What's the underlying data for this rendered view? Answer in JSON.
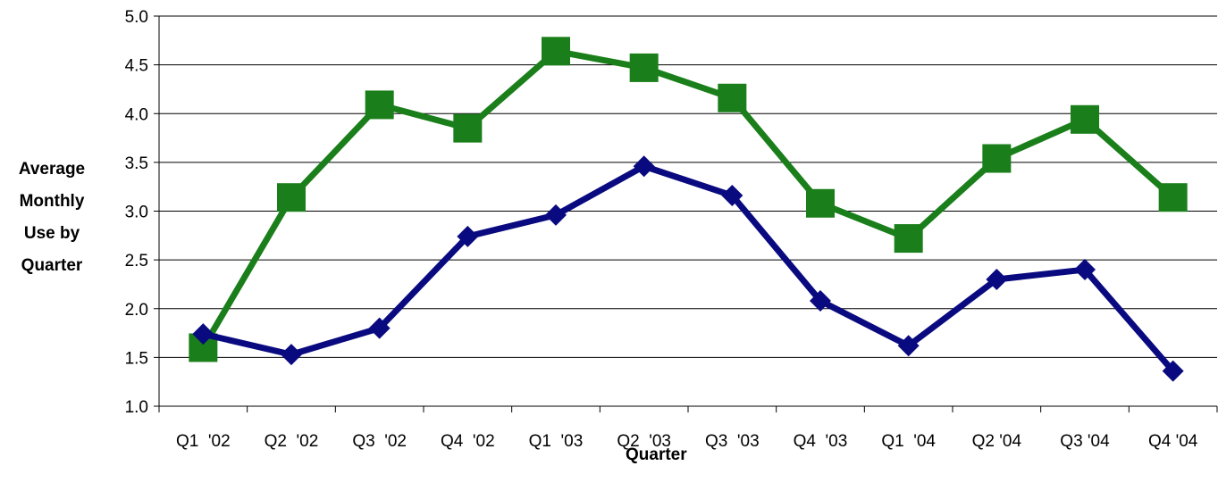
{
  "chart_data": {
    "type": "line",
    "categories": [
      "Q1  '02",
      "Q2  '02",
      "Q3  '02",
      "Q4  '02",
      "Q1  '03",
      "Q2  '03",
      "Q3  '03",
      "Q4  '03",
      "Q1  '04",
      "Q2 '04",
      "Q3 '04",
      "Q4 '04"
    ],
    "series": [
      {
        "color": "#1a7f1a",
        "marker": "square",
        "values": [
          1.6,
          3.14,
          4.09,
          3.85,
          4.64,
          4.47,
          4.16,
          3.08,
          2.72,
          3.54,
          3.94,
          3.14
        ]
      },
      {
        "color": "#0a0a80",
        "marker": "diamond",
        "values": [
          1.74,
          1.53,
          1.8,
          2.74,
          2.96,
          3.46,
          3.16,
          2.08,
          1.62,
          2.3,
          2.4,
          1.36
        ]
      }
    ],
    "ylim": [
      1.0,
      5.0
    ],
    "yticks": [
      "1.0",
      "1.5",
      "2.0",
      "2.5",
      "3.0",
      "3.5",
      "4.0",
      "4.5",
      "5.0"
    ],
    "ylabel_lines": [
      "Average",
      "Monthly",
      "Use by",
      "Quarter"
    ],
    "xlabel": "Quarter",
    "grid": true
  }
}
